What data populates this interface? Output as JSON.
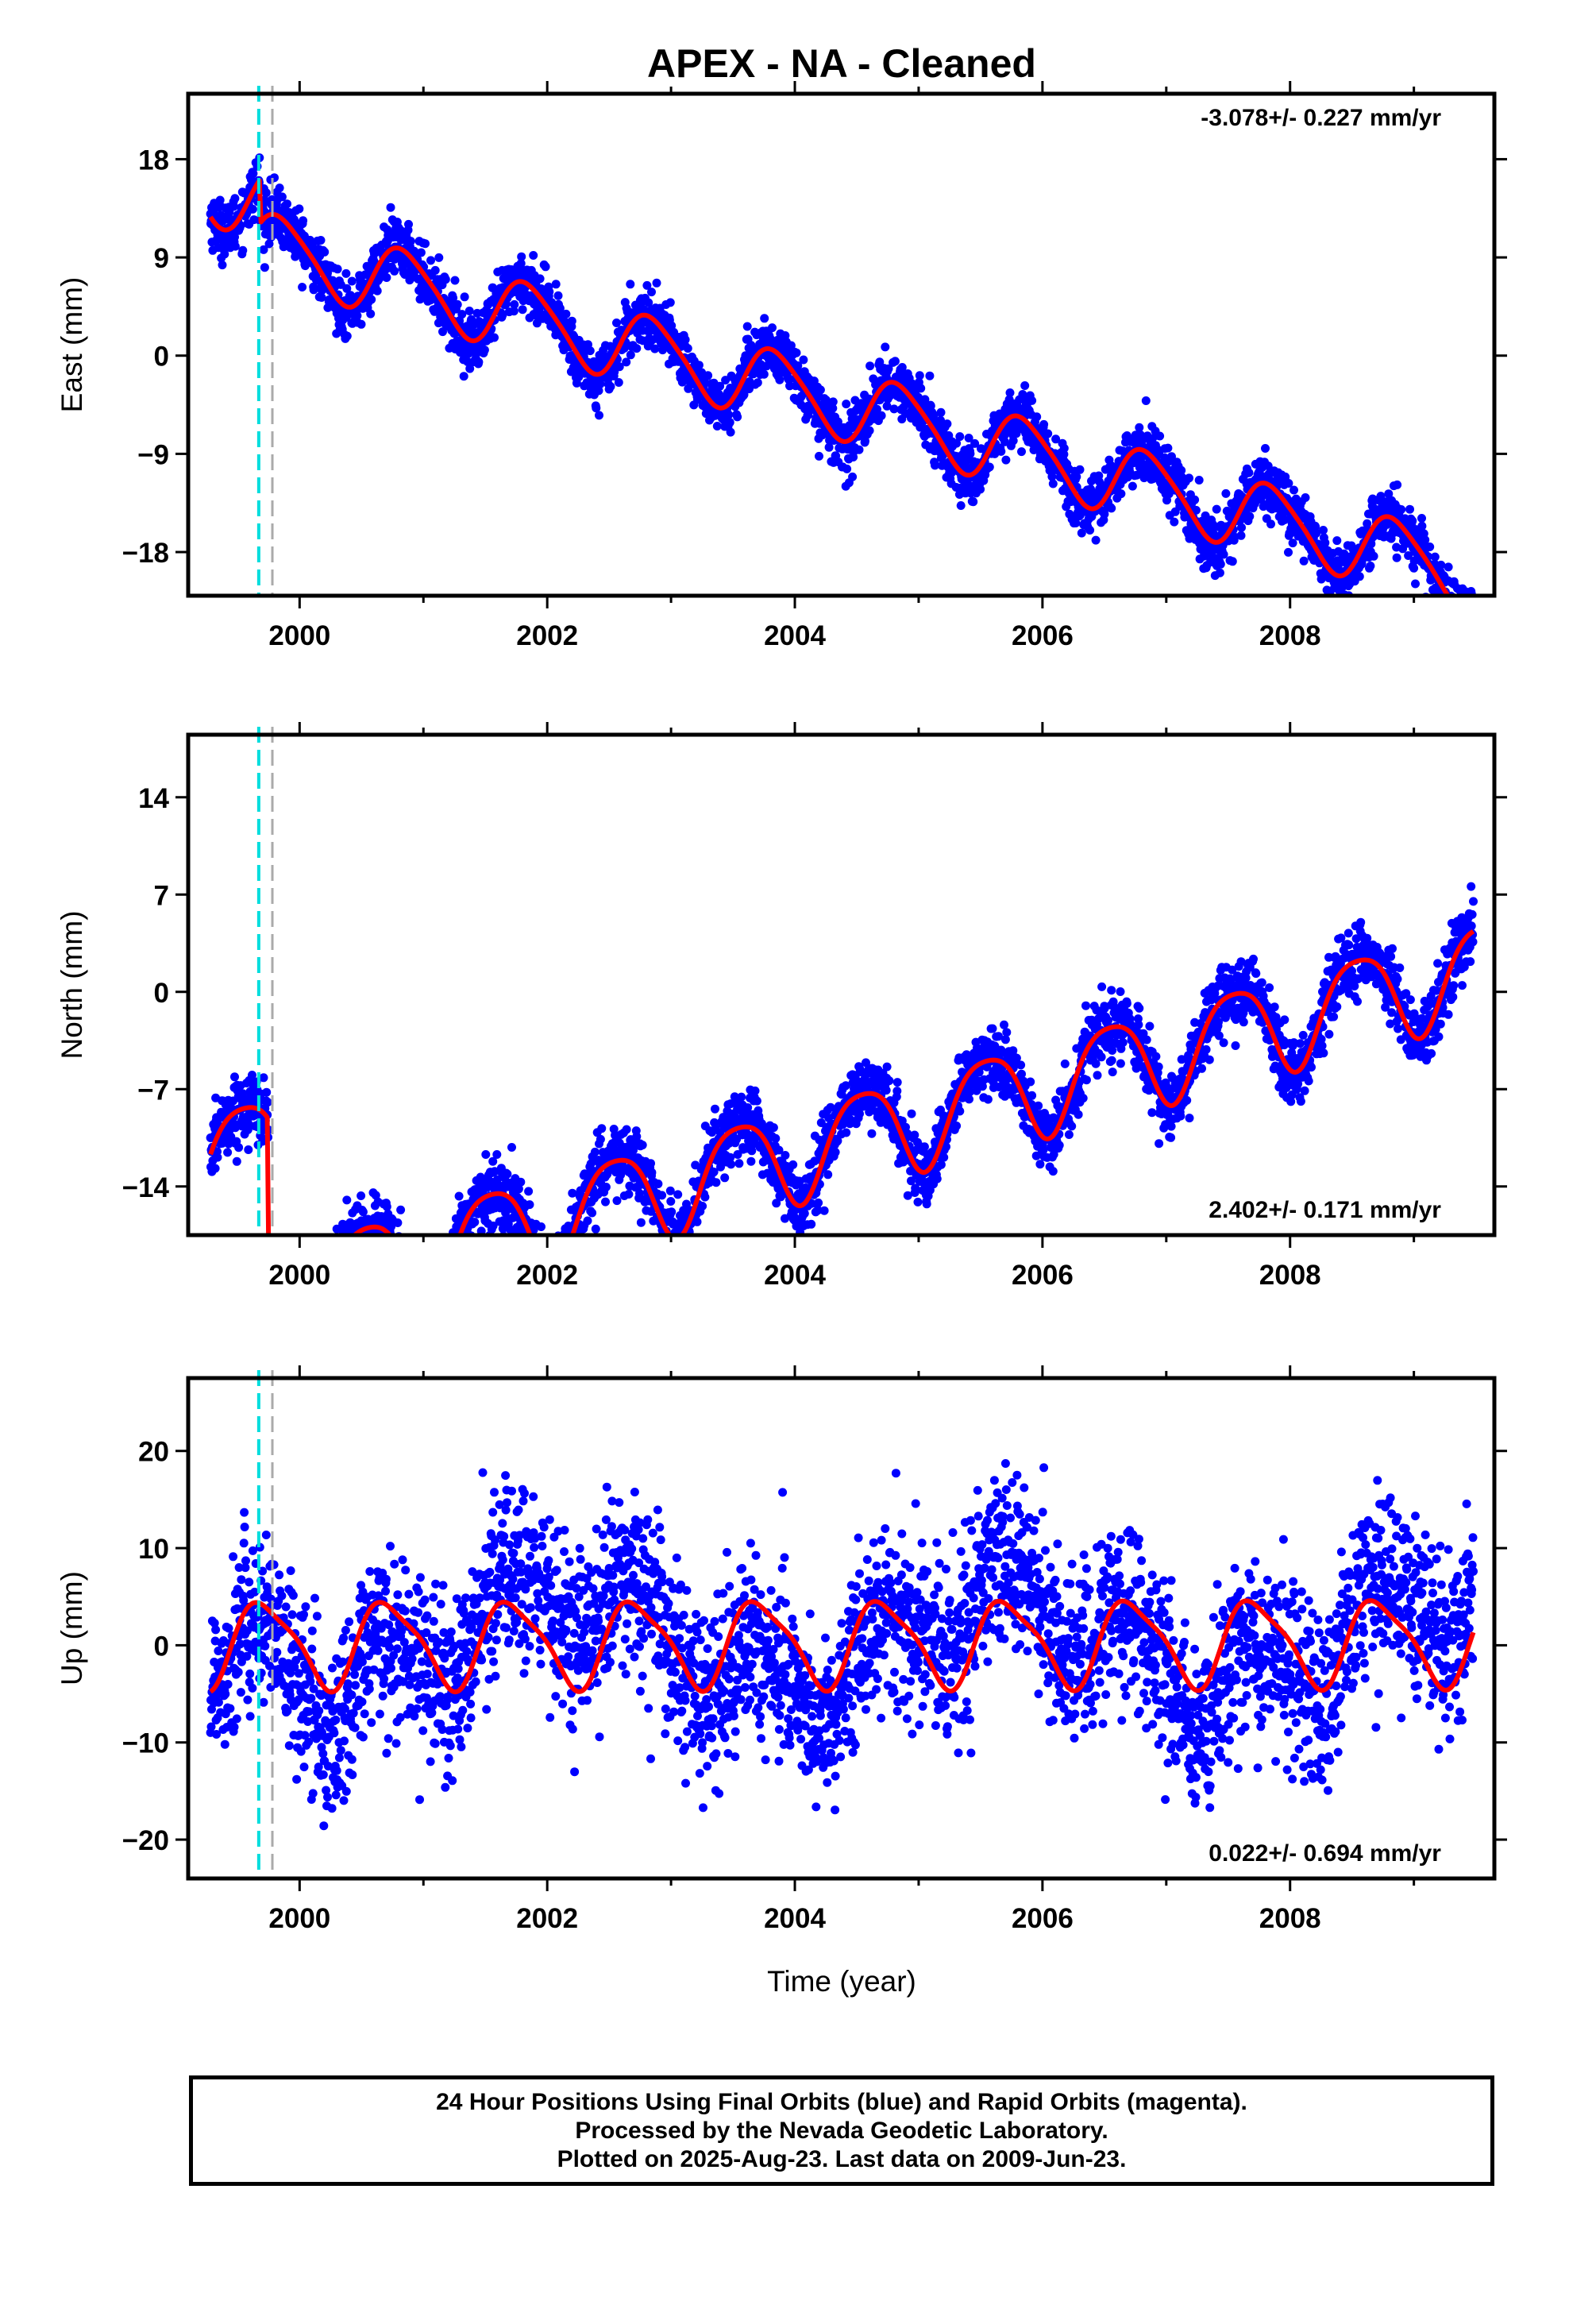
{
  "title": "APEX  - NA - Cleaned",
  "colors": {
    "points": "#0000ff",
    "model": "#ff0000",
    "offset_antenna": "#00dddd",
    "offset_other": "#aaaaaa"
  },
  "xlabel": "Time (year)",
  "footer": {
    "line1": "24 Hour Positions Using Final Orbits (blue) and Rapid Orbits (magenta).",
    "line2": "Processed by the Nevada Geodetic Laboratory.",
    "line3": "Plotted on 2025-Aug-23. Last data on 2009-Jun-23."
  },
  "chart_data": [
    {
      "type": "scatter",
      "name": "east",
      "ylabel": "East (mm)",
      "rate_label": "-3.078+/- 0.227 mm/yr",
      "xlim": [
        1999.1,
        2009.65
      ],
      "ylim": [
        -22,
        24
      ],
      "xticks": [
        2000,
        2002,
        2004,
        2006,
        2008
      ],
      "xtick_labels": [
        "2000",
        "2002",
        "2004",
        "2006",
        "2008"
      ],
      "yticks": [
        -18,
        -9,
        0,
        9,
        18
      ],
      "ytick_labels": [
        "−18",
        "−9",
        "0",
        "9",
        "18"
      ],
      "offsets": [
        1999.67,
        1999.78
      ],
      "x_start": 1999.28,
      "x_end": 2009.48,
      "model": {
        "rate": -3.078,
        "intercept_2004": 0.8,
        "annual_amp": 3.2,
        "annual_peak": 2004.85,
        "semi_amp": 0.5,
        "semi_peak": 2004.2,
        "steps": [
          [
            1999.68,
            -4.0
          ]
        ]
      },
      "scatter_sd": 1.3
    },
    {
      "type": "scatter",
      "name": "north",
      "ylabel": "North (mm)",
      "rate_label": "2.402+/- 0.171 mm/yr",
      "xlim": [
        1999.1,
        2009.65
      ],
      "ylim": [
        -17.5,
        18.5
      ],
      "xticks": [
        2000,
        2002,
        2004,
        2006,
        2008
      ],
      "xtick_labels": [
        "2000",
        "2002",
        "2004",
        "2006",
        "2008"
      ],
      "yticks": [
        -14,
        -7,
        0,
        7,
        14
      ],
      "ytick_labels": [
        "−14",
        "−7",
        "0",
        "7",
        "14"
      ],
      "offsets": [
        1999.67,
        1999.78
      ],
      "x_start": 1999.28,
      "x_end": 2009.48,
      "model": {
        "rate": 2.402,
        "intercept_2004": -0.5,
        "annual_amp": 3.4,
        "annual_peak": 2004.55,
        "semi_amp": 0.6,
        "semi_peak": 2004.3,
        "steps": [
          [
            1999.75,
            -11.0
          ]
        ]
      },
      "scatter_sd": 1.2
    },
    {
      "type": "scatter",
      "name": "up",
      "ylabel": "Up (mm)",
      "rate_label": "0.022+/- 0.694 mm/yr",
      "xlim": [
        1999.1,
        2009.65
      ],
      "ylim": [
        -24,
        27.5
      ],
      "xticks": [
        2000,
        2002,
        2004,
        2006,
        2008
      ],
      "xtick_labels": [
        "2000",
        "2002",
        "2004",
        "2006",
        "2008"
      ],
      "yticks": [
        -20,
        -10,
        0,
        10,
        20
      ],
      "ytick_labels": [
        "−20",
        "−10",
        "0",
        "10",
        "20"
      ],
      "offsets": [
        1999.67,
        1999.78
      ],
      "x_start": 1999.28,
      "x_end": 2009.48,
      "model": {
        "rate": 0.022,
        "intercept_2004": 0.3,
        "annual_amp": 4.3,
        "annual_peak": 2004.72,
        "semi_amp": 1.0,
        "semi_peak": 2004.55,
        "steps": []
      },
      "scatter_sd": 4.5
    }
  ]
}
